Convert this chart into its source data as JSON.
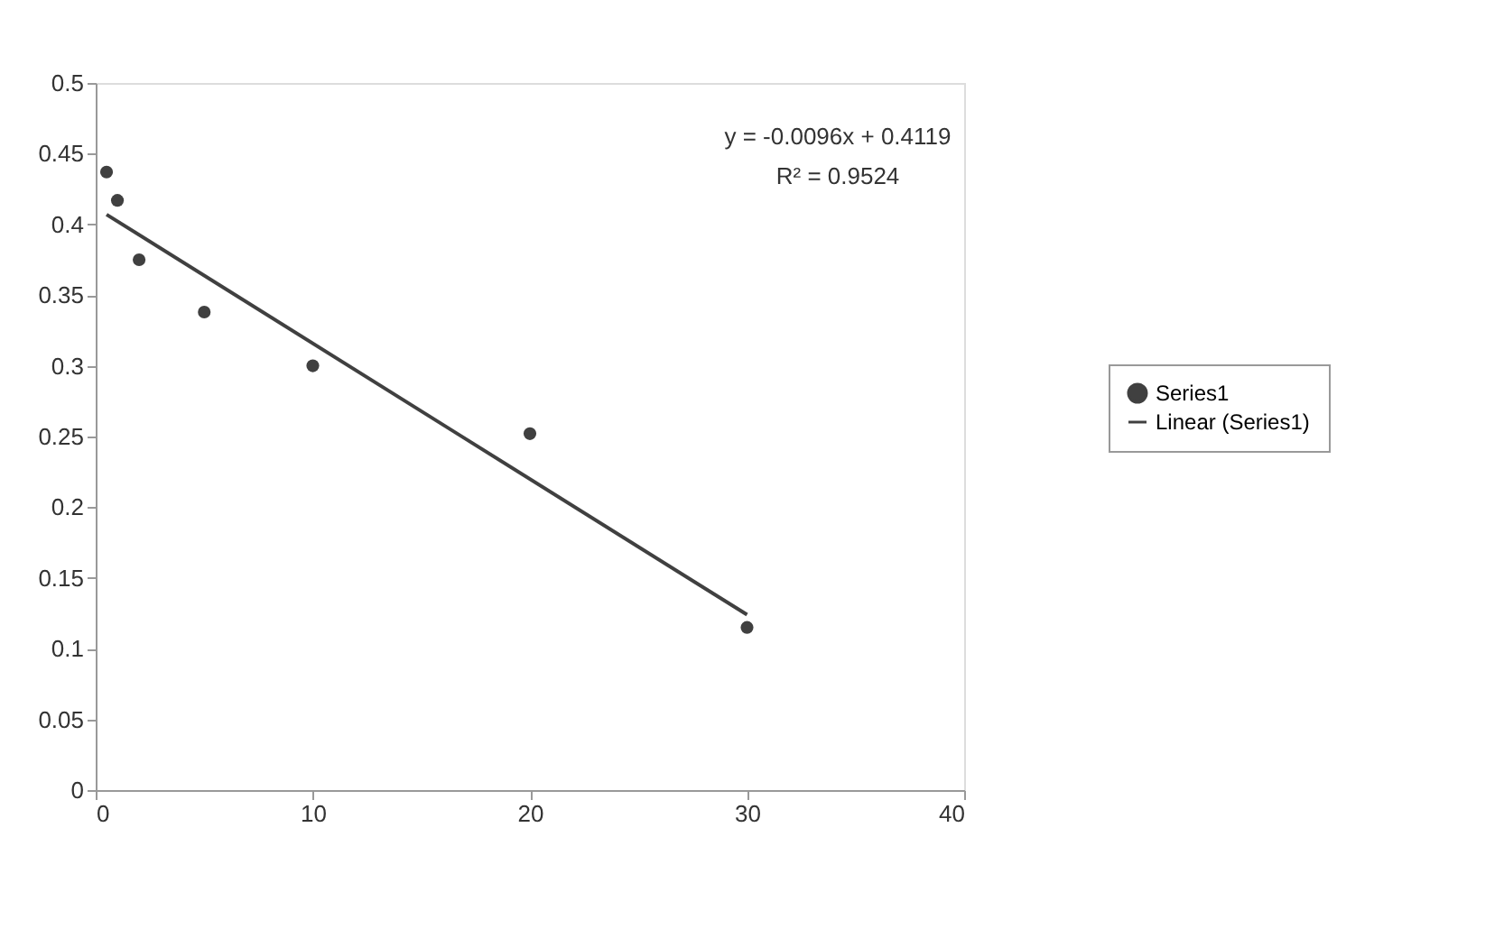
{
  "chart_data": {
    "type": "scatter",
    "xlim": [
      0,
      40
    ],
    "xticks": [
      0,
      10,
      20,
      30,
      40
    ],
    "ylim": [
      0,
      0.5
    ],
    "yticks": [
      0,
      0.05,
      0.1,
      0.15,
      0.2,
      0.25,
      0.3,
      0.35,
      0.4,
      0.45,
      0.5
    ],
    "series": [
      {
        "name": "Series1",
        "type": "scatter",
        "color": "#404040",
        "marker": "circle",
        "x": [
          0.5,
          1,
          2,
          5,
          10,
          20,
          30
        ],
        "values": [
          0.437,
          0.417,
          0.375,
          0.338,
          0.3,
          0.252,
          0.115
        ]
      },
      {
        "name": "Linear (Series1)",
        "type": "line",
        "color": "#404040",
        "line_style": "solid",
        "x": [
          0.5,
          30
        ],
        "values": [
          0.407,
          0.124
        ]
      }
    ],
    "annotations": [
      "y = -0.0096x + 0.4119",
      "R² = 0.9524"
    ],
    "legend": "right",
    "grid": false
  }
}
